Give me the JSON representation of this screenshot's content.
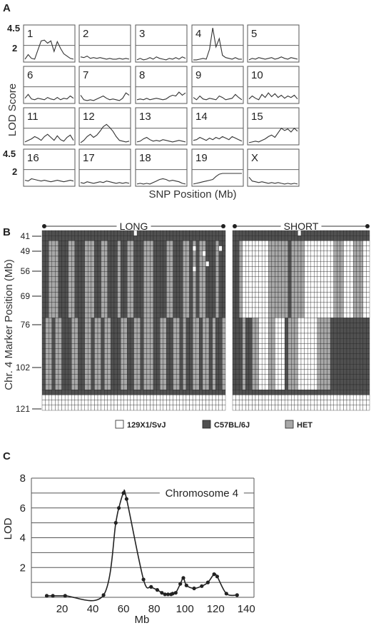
{
  "panel_labels": {
    "a": "A",
    "b": "B",
    "c": "C"
  },
  "panel_a": {
    "ylabel": "LOD Score",
    "xlabel": "SNP Position (Mb)",
    "ytick_top": "4.5",
    "ytick_mid": "2",
    "chromosomes": [
      "1",
      "2",
      "3",
      "4",
      "5",
      "6",
      "7",
      "8",
      "9",
      "10",
      "11",
      "12",
      "13",
      "14",
      "15",
      "16",
      "17",
      "18",
      "19",
      "X"
    ]
  },
  "panel_b": {
    "group_long": "LONG",
    "group_short": "SHORT",
    "ylabel": "Chr. 4 Marker Position (Mb)",
    "yticks": [
      "41",
      "49",
      "56",
      "69",
      "76",
      "102",
      "121"
    ],
    "legend": [
      {
        "label": "129X1/SvJ",
        "color": "#ffffff"
      },
      {
        "label": "C57BL/6J",
        "color": "#505050"
      },
      {
        "label": "HET",
        "color": "#a8a8a8"
      }
    ]
  },
  "chart_data": [
    {
      "type": "line",
      "panel": "A",
      "ylabel": "LOD Score",
      "xlabel": "SNP Position (Mb)",
      "threshold": 2,
      "ylim": [
        0,
        4.5
      ],
      "series": [
        {
          "name": "1",
          "values": [
            0.2,
            0.8,
            0.3,
            0.2,
            1.4,
            2.6,
            2.7,
            2.3,
            2.6,
            1.2,
            2.5,
            1.6,
            0.9,
            0.6,
            0.3,
            0.2
          ]
        },
        {
          "name": "2",
          "values": [
            0.5,
            0.4,
            0.6,
            0.3,
            0.4,
            0.3,
            0.4,
            0.3,
            0.2,
            0.3,
            0.2,
            0.2,
            0.3,
            0.2,
            0.3,
            0.2
          ]
        },
        {
          "name": "3",
          "values": [
            0.1,
            0.3,
            0.1,
            0.2,
            0.4,
            0.2,
            0.5,
            0.3,
            0.2,
            0.1,
            0.3,
            0.2,
            0.4,
            0.2,
            0.5,
            0.3
          ]
        },
        {
          "name": "4",
          "values": [
            0.1,
            0.1,
            0.2,
            0.3,
            0.2,
            1.5,
            4.3,
            1.8,
            2.9,
            0.7,
            0.4,
            0.3,
            0.2,
            0.4,
            0.2,
            0.2
          ]
        },
        {
          "name": "5",
          "values": [
            0.1,
            0.3,
            0.2,
            0.4,
            0.3,
            0.2,
            0.3,
            0.4,
            0.2,
            0.3,
            0.5,
            0.3,
            0.2,
            0.4,
            0.3,
            0.2
          ]
        },
        {
          "name": "6",
          "values": [
            0.5,
            1.0,
            0.4,
            0.3,
            0.5,
            0.4,
            0.3,
            0.6,
            0.4,
            0.3,
            0.6,
            0.3,
            0.5,
            0.4,
            0.8,
            0.5
          ]
        },
        {
          "name": "7",
          "values": [
            0.9,
            0.3,
            0.2,
            0.3,
            0.2,
            0.4,
            0.6,
            0.8,
            0.5,
            0.3,
            0.4,
            0.3,
            0.2,
            0.5,
            1.2,
            0.9
          ]
        },
        {
          "name": "8",
          "values": [
            0.3,
            0.4,
            0.3,
            0.5,
            0.3,
            0.4,
            0.5,
            0.4,
            0.3,
            0.4,
            0.7,
            0.9,
            0.8,
            1.3,
            0.9,
            1.2
          ]
        },
        {
          "name": "9",
          "values": [
            0.6,
            0.3,
            0.8,
            0.4,
            0.3,
            0.5,
            0.4,
            0.3,
            0.8,
            0.6,
            0.3,
            0.4,
            0.5,
            1.0,
            0.6,
            0.3
          ]
        },
        {
          "name": "10",
          "values": [
            0.4,
            0.8,
            0.5,
            0.3,
            1.0,
            0.6,
            1.2,
            0.7,
            1.1,
            0.6,
            0.9,
            0.5,
            0.8,
            0.6,
            0.9,
            0.4
          ]
        },
        {
          "name": "11",
          "values": [
            0.2,
            0.4,
            0.6,
            0.9,
            0.7,
            0.4,
            0.9,
            1.2,
            0.8,
            0.4,
            1.0,
            0.5,
            0.3,
            0.8,
            1.1,
            0.4
          ]
        },
        {
          "name": "12",
          "values": [
            0.1,
            0.4,
            0.9,
            1.2,
            0.8,
            1.1,
            1.6,
            2.2,
            2.5,
            2.1,
            1.6,
            0.9,
            0.4,
            0.3,
            0.2,
            0.3
          ]
        },
        {
          "name": "13",
          "values": [
            0.2,
            0.3,
            0.6,
            0.8,
            0.5,
            0.3,
            0.4,
            0.3,
            0.5,
            0.4,
            0.3,
            0.2,
            0.3,
            0.4,
            0.3,
            0.2
          ]
        },
        {
          "name": "14",
          "values": [
            0.4,
            0.5,
            0.8,
            0.6,
            0.4,
            0.7,
            0.5,
            0.8,
            0.6,
            0.9,
            0.7,
            0.5,
            0.9,
            0.7,
            0.5,
            0.3
          ]
        },
        {
          "name": "15",
          "values": [
            0.1,
            0.2,
            0.3,
            0.2,
            0.4,
            0.6,
            0.9,
            1.1,
            0.8,
            1.4,
            2.0,
            1.7,
            1.9,
            1.5,
            2.0,
            1.6
          ]
        },
        {
          "name": "16",
          "values": [
            0.6,
            0.5,
            0.8,
            0.7,
            0.6,
            0.5,
            0.6,
            0.5,
            0.4,
            0.5,
            0.6,
            0.5,
            0.4,
            0.5,
            0.6,
            0.5
          ]
        },
        {
          "name": "17",
          "values": [
            0.3,
            0.2,
            0.4,
            0.3,
            0.2,
            0.3,
            0.4,
            0.3,
            0.5,
            0.4,
            0.3,
            0.2,
            0.3,
            0.2,
            0.3,
            0.2
          ]
        },
        {
          "name": "18",
          "values": [
            0.1,
            0.2,
            0.1,
            0.2,
            0.1,
            0.3,
            0.5,
            0.7,
            0.8,
            0.7,
            0.5,
            0.6,
            0.5,
            0.4,
            0.2,
            0.1
          ]
        },
        {
          "name": "19",
          "values": [
            0.1,
            0.2,
            0.3,
            0.4,
            0.5,
            0.6,
            0.7,
            1.1,
            1.4,
            1.5,
            1.5,
            1.5,
            1.5,
            1.5,
            1.5,
            1.5
          ]
        },
        {
          "name": "X",
          "values": [
            1.0,
            0.5,
            0.4,
            0.3,
            0.4,
            0.3,
            0.2,
            0.3,
            0.2,
            0.3,
            0.2,
            0.1,
            0.2,
            0.1,
            0.2,
            0.1
          ]
        }
      ]
    },
    {
      "type": "heatmap",
      "panel": "B",
      "xlabel": "",
      "ylabel": "Chr. 4 Marker Position (Mb)",
      "categories": [
        "129X1/SvJ",
        "C57BL/6J",
        "HET"
      ],
      "groups": [
        {
          "name": "LONG",
          "rows": [
            "11111111111111111111111111110111111111111111111111111111",
            "11111111111111111111111111111111111111111111111111111111",
            "11222111221112221122111211221112221111221112212122111211",
            "11222111221112221122111211221112221111221112210122111201",
            "11222111221112221122111211221112221111221112212120111211",
            "11222111221112221122111211221112221111221112212122111211",
            "11222111221112221122111211221112221111221112212122011211",
            "11222111221112221122111211221112221111221112210122111211",
            "11222111221112221122111211221112221111221112212122111211",
            "11222111221112221122111211221112221111221112212122111211",
            "11222111221112221122111211221112221111221112212122111211",
            "11222111221112221122111211221112221111221112212122111211",
            "11222111221112221122111211221112221111221112212122111211",
            "11222111221112221122111211221112221111221112212122111211",
            "11222111221112221122111211221112221111221112212122111211",
            "11222111221112221122111211221112221111221112212122111211",
            "11222111221112221122111211221112221111221112212122111211",
            "12212211122112212212211122112212221122112212112212212112",
            "12212211122112212212211122112212221122112212112212212112",
            "12212211122112212212211122112212221122112212112212212112",
            "12212211122112212212211122112212221122112212112212212112",
            "12212211122112212212211122112212221122112212112212212112",
            "12212211122112212212211122112212221122112212112212212112",
            "12212211122112212212211122112212221122112212112212212112",
            "12212211122112212212211122112212221122112212112212212112",
            "12212211122112212212211122112212221122112212112212212112",
            "12212211122112212212211122112212221122112212112212212112",
            "12212211122112212212211122112212221122112212112212212112",
            "12212211122112212212211122112212221122112212112212212112",
            "12212211122112212212211122112212221122112212112212212112",
            "12212211122112212212211122112212221122112212112212212112",
            "11111111111111111111111111111111111111111111111111111111",
            "00000000000000000000000000000000000000000000000000000000",
            "00000000000000000000000000000000000000000000000000000000",
            "00000000000000000000000000000000000000000000000000000000"
          ]
        },
        {
          "name": "SHORT",
          "rows": [
            "111111111111111111110111111111111111111111",
            "111111111111111111111111111111111111111111",
            "112000000002222221222200000000022200022200",
            "112000000002222221222200000000022200022200",
            "112000000002222221222200000000022200022200",
            "112000000002222221222200000000022200022200",
            "112000000002222221222200000000022200022200",
            "112000000002222221222200000000022200022200",
            "112000000002222221222200000000022200022200",
            "112000000002222221222200000000022200022200",
            "112000000002222221222200000000022200022200",
            "112000000002222221222200000000022200022200",
            "112000000002222221222200000000022200022200",
            "112000000002222221222200000000022200022200",
            "112000000002222221222200000000022200022200",
            "112000000002222221222200000000022200022200",
            "112000000002222221222200000000022200022200",
            "111211220002200012220000002222111111111111",
            "111211220002200012220000002222111111111111",
            "111211220002200012220000002222111111111111",
            "111211220002200012220000002222111111111111",
            "111211220002200012220000002222111111111111",
            "111211220002200012220000002222111111111111",
            "111211220002200012220000002222111111111111",
            "111211220002200012220000002222111111111111",
            "111211220002200012220000002222111111111111",
            "111211220002200012220000002222111111111111",
            "111211220002200012220000002222111111111111",
            "111211220002200012220000002222111111111111",
            "111211220002200012220000002222111111111111",
            "111211220002200012220000002222111111111111",
            "111111111111111111111111111111111111111111",
            "000000000000000000000000000000000000000000",
            "000000000000000000000000000000000000000000",
            "000000000000000000000000000000000000000000"
          ]
        }
      ]
    },
    {
      "type": "line",
      "panel": "C",
      "title": "Chromosome 4",
      "xlabel": "Mb",
      "ylabel": "LOD",
      "xlim": [
        0,
        145
      ],
      "ylim": [
        0,
        8
      ],
      "xticks": [
        20,
        40,
        60,
        80,
        100,
        120,
        140
      ],
      "yticks": [
        2,
        4,
        6,
        8
      ],
      "x": [
        10,
        14,
        22,
        47,
        55,
        57,
        60,
        62,
        73,
        78,
        82,
        85,
        87,
        89,
        91,
        92,
        94,
        97,
        99,
        101,
        106,
        111,
        115,
        119,
        121,
        127,
        134
      ],
      "values": [
        0.1,
        0.1,
        0.1,
        0.15,
        5.0,
        6.0,
        7.0,
        6.6,
        1.2,
        0.7,
        0.5,
        0.3,
        0.2,
        0.2,
        0.2,
        0.25,
        0.3,
        0.9,
        1.3,
        0.8,
        0.6,
        0.75,
        1.0,
        1.55,
        1.4,
        0.25,
        0.15
      ],
      "grid": true
    }
  ]
}
